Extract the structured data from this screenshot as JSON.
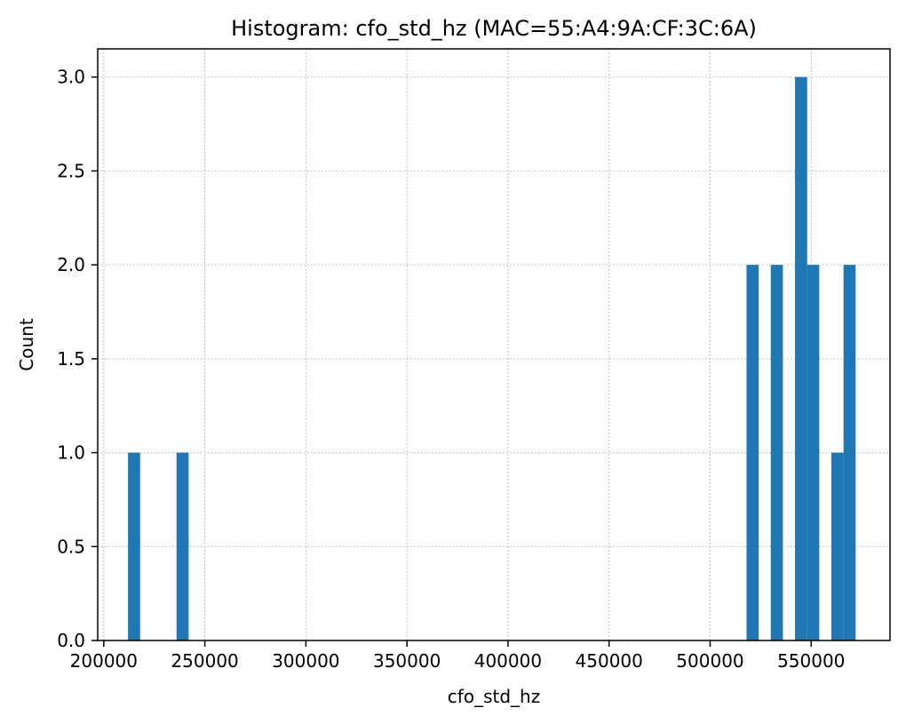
{
  "chart_data": {
    "type": "bar",
    "title": "Histogram: cfo_std_hz (MAC=55:A4:9A:CF:3C:6A)",
    "xlabel": "cfo_std_hz",
    "ylabel": "Count",
    "xlim": [
      197000,
      589000
    ],
    "ylim": [
      0,
      3.15
    ],
    "xticks": [
      200000,
      250000,
      300000,
      350000,
      400000,
      450000,
      500000,
      550000
    ],
    "xtick_labels": [
      "200000",
      "250000",
      "300000",
      "350000",
      "400000",
      "450000",
      "500000",
      "550000"
    ],
    "yticks": [
      0,
      0.5,
      1,
      1.5,
      2,
      2.5,
      3
    ],
    "ytick_labels": [
      "0.0",
      "0.5",
      "1.0",
      "1.5",
      "2.0",
      "2.5",
      "3.0"
    ],
    "grid": true,
    "bar_color": "#1f77b4",
    "bin_width": 6000,
    "bins": [
      {
        "x_start": 212000,
        "count": 1
      },
      {
        "x_start": 236000,
        "count": 1
      },
      {
        "x_start": 518000,
        "count": 2
      },
      {
        "x_start": 530000,
        "count": 2
      },
      {
        "x_start": 542000,
        "count": 3
      },
      {
        "x_start": 548000,
        "count": 2
      },
      {
        "x_start": 560000,
        "count": 1
      },
      {
        "x_start": 566000,
        "count": 2
      }
    ]
  }
}
